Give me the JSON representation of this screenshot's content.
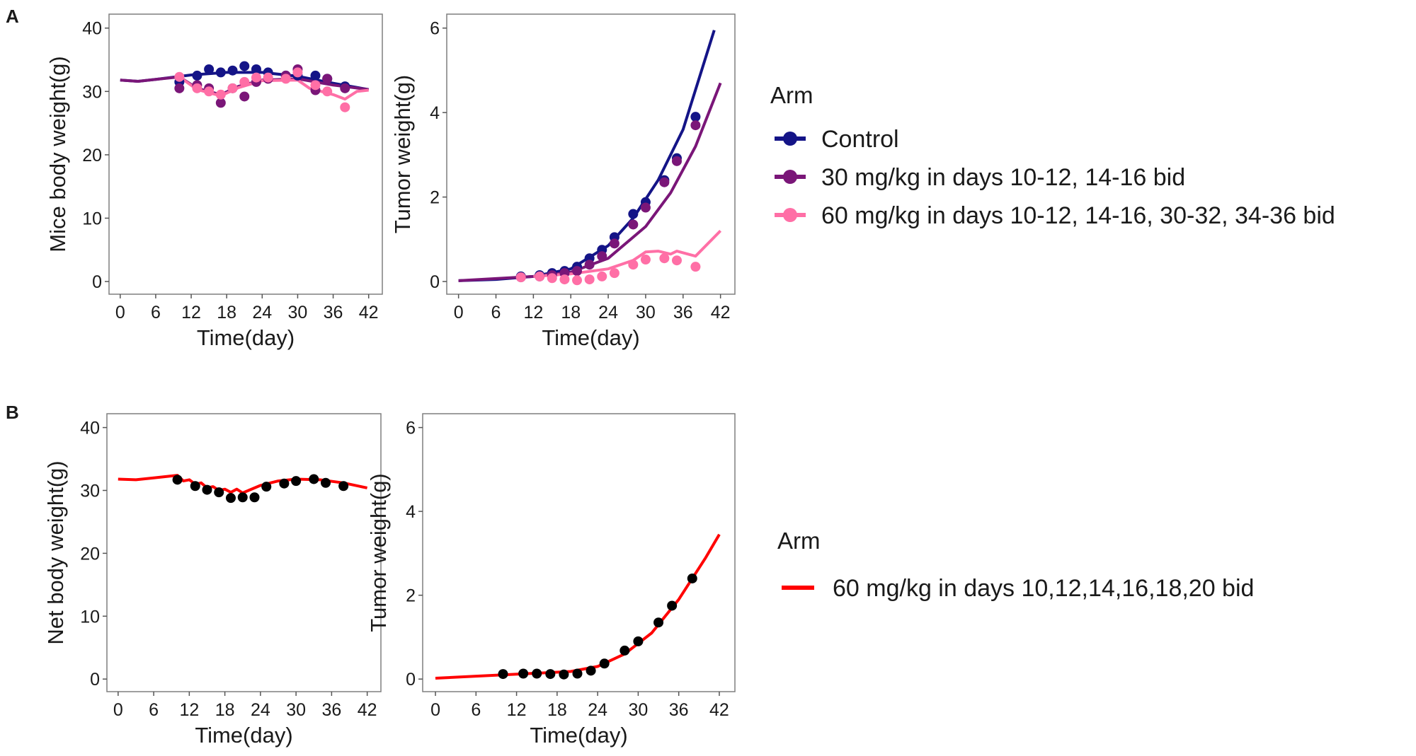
{
  "panels": [
    {
      "label": "A",
      "legend": {
        "title": "Arm",
        "items": [
          {
            "name": "Control",
            "color": "#141487"
          },
          {
            "name": "30 mg/kg in days 10-12, 14-16 bid",
            "color": "#7a1678"
          },
          {
            "name": "60 mg/kg in days 10-12, 14-16, 30-32, 34-36 bid",
            "color": "#ff6fa6"
          }
        ]
      }
    },
    {
      "label": "B",
      "legend": {
        "title": "Arm",
        "items": [
          {
            "name": "60 mg/kg in days 10,12,14,16,18,20 bid",
            "color": "#ff0000"
          }
        ]
      }
    }
  ],
  "chart_data": [
    {
      "panel": "A",
      "type": "line+scatter",
      "xlabel": "Time(day)",
      "ylabel": "Mice body weight(g)",
      "xlim": [
        0,
        42
      ],
      "ylim": [
        0,
        40
      ],
      "xticks": [
        "0",
        "6",
        "12",
        "18",
        "24",
        "30",
        "36",
        "42"
      ],
      "yticks": [
        "0",
        "10",
        "20",
        "30",
        "40"
      ],
      "grid": false,
      "series": [
        {
          "name": "Control",
          "color": "#141487",
          "points": {
            "x": [
              10,
              13,
              15,
              17,
              19,
              21,
              23,
              25,
              28,
              30,
              33,
              35,
              38
            ],
            "y": [
              31.5,
              32.5,
              33.5,
              33,
              33.3,
              34,
              33.5,
              33,
              32.5,
              32.5,
              32.5,
              32,
              30.8
            ]
          },
          "line": {
            "x": [
              0,
              3,
              6,
              12,
              18,
              24,
              30,
              36,
              42
            ],
            "y": [
              31.8,
              31.6,
              31.9,
              32.6,
              33,
              33,
              32.4,
              31.3,
              30.3
            ]
          }
        },
        {
          "name": "30 mg/kg in days 10-12, 14-16 bid",
          "color": "#7a1678",
          "points": {
            "x": [
              10,
              13,
              15,
              17,
              19,
              21,
              23,
              25,
              28,
              30,
              33,
              35,
              38
            ],
            "y": [
              30.5,
              31,
              30.5,
              28.2,
              30.5,
              29.2,
              31.5,
              32,
              32.5,
              33.5,
              30.2,
              32,
              30.5
            ]
          },
          "line": {
            "x": [
              0,
              3,
              6,
              10,
              13,
              17,
              20,
              24,
              30,
              36,
              42
            ],
            "y": [
              31.8,
              31.6,
              31.9,
              32.3,
              30.5,
              29.5,
              30.8,
              31.8,
              32,
              31,
              30.3
            ]
          }
        },
        {
          "name": "60 mg/kg in days 10-12, 14-16, 30-32, 34-36 bid",
          "color": "#ff6fa6",
          "points": {
            "x": [
              10,
              13,
              15,
              17,
              19,
              21,
              23,
              25,
              28,
              30,
              33,
              35,
              38
            ],
            "y": [
              32.3,
              30.5,
              30,
              29.5,
              30.5,
              31.5,
              32.2,
              32.2,
              32,
              33,
              31,
              30,
              27.5
            ]
          },
          "line": {
            "x": [
              10,
              13,
              17,
              20,
              24,
              30,
              32,
              34,
              36,
              38,
              40,
              42
            ],
            "y": [
              32.3,
              30.3,
              29.3,
              30.6,
              31.7,
              31.8,
              30.5,
              30,
              29.5,
              28.8,
              30,
              30.2
            ]
          }
        }
      ]
    },
    {
      "panel": "A",
      "type": "line+scatter",
      "xlabel": "Time(day)",
      "ylabel": "Tumor weight(g)",
      "xlim": [
        0,
        42
      ],
      "ylim": [
        0,
        6
      ],
      "xticks": [
        "0",
        "6",
        "12",
        "18",
        "24",
        "30",
        "36",
        "42"
      ],
      "yticks": [
        "0",
        "2",
        "4",
        "6"
      ],
      "grid": false,
      "series": [
        {
          "name": "Control",
          "color": "#141487",
          "points": {
            "x": [
              10,
              13,
              15,
              17,
              19,
              21,
              23,
              25,
              28,
              30,
              33,
              35,
              38
            ],
            "y": [
              0.12,
              0.15,
              0.2,
              0.25,
              0.35,
              0.55,
              0.75,
              1.05,
              1.6,
              1.88,
              2.4,
              2.92,
              3.9
            ]
          },
          "line": {
            "x": [
              0,
              6,
              12,
              18,
              24,
              28,
              32,
              36,
              41
            ],
            "y": [
              0.02,
              0.05,
              0.12,
              0.3,
              0.85,
              1.5,
              2.4,
              3.6,
              5.95
            ]
          }
        },
        {
          "name": "30 mg/kg in days 10-12, 14-16 bid",
          "color": "#7a1678",
          "points": {
            "x": [
              10,
              13,
              15,
              17,
              19,
              21,
              23,
              25,
              28,
              30,
              33,
              35,
              38
            ],
            "y": [
              0.1,
              0.12,
              0.15,
              0.2,
              0.25,
              0.4,
              0.6,
              0.9,
              1.35,
              1.75,
              2.35,
              2.85,
              3.7
            ]
          },
          "line": {
            "x": [
              0,
              12,
              18,
              24,
              30,
              34,
              38,
              42
            ],
            "y": [
              0.02,
              0.12,
              0.22,
              0.55,
              1.3,
              2.1,
              3.2,
              4.7
            ]
          }
        },
        {
          "name": "60 mg/kg in days 10-12, 14-16, 30-32, 34-36 bid",
          "color": "#ff6fa6",
          "points": {
            "x": [
              10,
              13,
              15,
              17,
              19,
              21,
              23,
              25,
              28,
              30,
              33,
              35,
              38
            ],
            "y": [
              0.1,
              0.12,
              0.08,
              0.05,
              0.03,
              0.05,
              0.12,
              0.2,
              0.4,
              0.52,
              0.55,
              0.5,
              0.35
            ]
          },
          "line": {
            "x": [
              12,
              18,
              24,
              28,
              30,
              32,
              34,
              35,
              38,
              42
            ],
            "y": [
              0.12,
              0.18,
              0.3,
              0.5,
              0.7,
              0.72,
              0.65,
              0.72,
              0.6,
              1.2
            ]
          }
        }
      ]
    },
    {
      "panel": "B",
      "type": "line+scatter",
      "xlabel": "Time(day)",
      "ylabel": "Net body weight(g)",
      "xlim": [
        0,
        42
      ],
      "ylim": [
        0,
        40
      ],
      "xticks": [
        "0",
        "6",
        "12",
        "18",
        "24",
        "30",
        "36",
        "42"
      ],
      "yticks": [
        "0",
        "10",
        "20",
        "30",
        "40"
      ],
      "grid": false,
      "series": [
        {
          "name": "60 mg/kg in days 10,12,14,16,18,20 bid",
          "color": "#ff0000",
          "point_color": "#000000",
          "points": {
            "x": [
              10,
              13,
              15,
              17,
              19,
              21,
              23,
              25,
              28,
              30,
              33,
              35,
              38
            ],
            "y": [
              31.7,
              30.7,
              30.1,
              29.7,
              28.8,
              28.9,
              28.9,
              30.6,
              31.1,
              31.5,
              31.8,
              31.2,
              30.7
            ]
          },
          "line": {
            "x": [
              0,
              3,
              6,
              10,
              11,
              12,
              13,
              14,
              15,
              16,
              17,
              18,
              19,
              20,
              21,
              24,
              27,
              30,
              34,
              38,
              42
            ],
            "y": [
              31.8,
              31.7,
              32,
              32.4,
              31.5,
              31.7,
              31,
              31.2,
              30.4,
              30.6,
              30,
              30.2,
              29.7,
              30.2,
              29.6,
              30.8,
              31.5,
              31.8,
              31.7,
              31.2,
              30.4
            ]
          }
        }
      ]
    },
    {
      "panel": "B",
      "type": "line+scatter",
      "xlabel": "Time(day)",
      "ylabel": "Tumor weight(g)",
      "xlim": [
        0,
        42
      ],
      "ylim": [
        0,
        6
      ],
      "xticks": [
        "0",
        "6",
        "12",
        "18",
        "24",
        "30",
        "36",
        "42"
      ],
      "yticks": [
        "0",
        "2",
        "4",
        "6"
      ],
      "grid": false,
      "series": [
        {
          "name": "60 mg/kg in days 10,12,14,16,18,20 bid",
          "color": "#ff0000",
          "point_color": "#000000",
          "points": {
            "x": [
              10,
              13,
              15,
              17,
              19,
              21,
              23,
              25,
              28,
              30,
              33,
              35,
              38
            ],
            "y": [
              0.12,
              0.13,
              0.13,
              0.12,
              0.11,
              0.13,
              0.2,
              0.37,
              0.68,
              0.9,
              1.35,
              1.75,
              2.4
            ]
          },
          "line": {
            "x": [
              0,
              10,
              20,
              24,
              28,
              32,
              36,
              40,
              42
            ],
            "y": [
              0.02,
              0.1,
              0.18,
              0.3,
              0.6,
              1.1,
              1.9,
              2.9,
              3.45
            ]
          }
        }
      ]
    }
  ]
}
